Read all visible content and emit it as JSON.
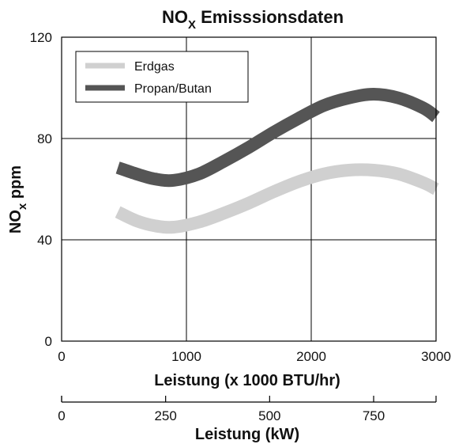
{
  "chart_data": {
    "type": "line",
    "title_main": "NO",
    "title_sub": "X",
    "title_rest": " Emisssionsdaten",
    "xlabel": "Leistung (x 1000 BTU/hr)",
    "ylabel_main": "NO",
    "ylabel_sub": "x",
    "ylabel_rest": " ppm",
    "secondary_xlabel": "Leistung (kW)",
    "xlim": [
      0,
      3000
    ],
    "ylim": [
      0,
      120
    ],
    "secondary_xlim": [
      0,
      900
    ],
    "xticks": [
      0,
      1000,
      2000,
      3000
    ],
    "yticks": [
      0,
      40,
      80,
      120
    ],
    "secondary_xticks": [
      0,
      250,
      500,
      750
    ],
    "grid": true,
    "legend_position": "top-left",
    "series": [
      {
        "name": "Erdgas",
        "color": "#d0d0d0",
        "x": [
          450,
          600,
          750,
          900,
          1100,
          1300,
          1500,
          1700,
          1900,
          2100,
          2300,
          2500,
          2700,
          2900,
          3000
        ],
        "y": [
          51,
          47.5,
          45.5,
          45,
          47,
          50.5,
          54.5,
          59,
          63,
          66,
          67.5,
          67.5,
          66,
          62.5,
          60
        ]
      },
      {
        "name": "Propan/Butan",
        "color": "#555555",
        "x": [
          450,
          600,
          750,
          900,
          1100,
          1300,
          1500,
          1700,
          1900,
          2100,
          2300,
          2500,
          2700,
          2900,
          3000
        ],
        "y": [
          68.5,
          66,
          64,
          63.5,
          66,
          71,
          76.5,
          82.5,
          88,
          93,
          96,
          97.5,
          96,
          92,
          88.5
        ]
      }
    ]
  }
}
